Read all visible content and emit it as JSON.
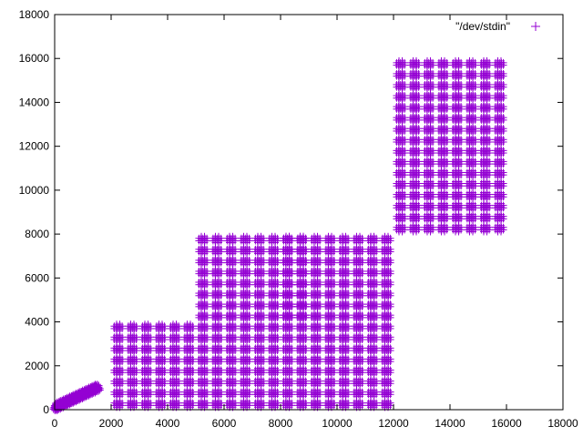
{
  "chart_data": {
    "type": "scatter",
    "title": "",
    "xlabel": "",
    "ylabel": "",
    "xlim": [
      0,
      18000
    ],
    "ylim": [
      0,
      18000
    ],
    "x_ticks": [
      0,
      2000,
      4000,
      6000,
      8000,
      10000,
      12000,
      14000,
      16000,
      18000
    ],
    "y_ticks": [
      0,
      2000,
      4000,
      6000,
      8000,
      10000,
      12000,
      14000,
      16000,
      18000
    ],
    "x_tick_labels": [
      "0",
      "2000",
      "4000",
      "6000",
      "8000",
      "10000",
      "12000",
      "14000",
      "16000",
      "18000"
    ],
    "y_tick_labels": [
      "0",
      "2000",
      "4000",
      "6000",
      "8000",
      "10000",
      "12000",
      "14000",
      "16000",
      "18000"
    ],
    "grid": false,
    "legend_position": "top-right",
    "marker": "plus",
    "series": [
      {
        "name": "\"/dev/stdin\"",
        "color": "#9400d3",
        "description": "Dense '#'-shaped (Hilbert-like) point pattern composed of many small plus markers",
        "pattern_blocks": [
          {
            "x_range": [
              0,
              2000
            ],
            "y_range": [
              0,
              2000
            ]
          },
          {
            "x_range": [
              2000,
              4000
            ],
            "y_range": [
              0,
              4000
            ]
          },
          {
            "x_range": [
              4000,
              6000
            ],
            "y_range": [
              0,
              4000
            ]
          },
          {
            "x_range": [
              5000,
              7000
            ],
            "y_range": [
              4000,
              8000
            ]
          },
          {
            "x_range": [
              6000,
              8000
            ],
            "y_range": [
              0,
              4000
            ]
          },
          {
            "x_range": [
              7000,
              9000
            ],
            "y_range": [
              4000,
              8000
            ]
          },
          {
            "x_range": [
              8000,
              12000
            ],
            "y_range": [
              0,
              8000
            ]
          },
          {
            "x_range": [
              12000,
              16000
            ],
            "y_range": [
              8000,
              16000
            ]
          }
        ]
      }
    ]
  }
}
